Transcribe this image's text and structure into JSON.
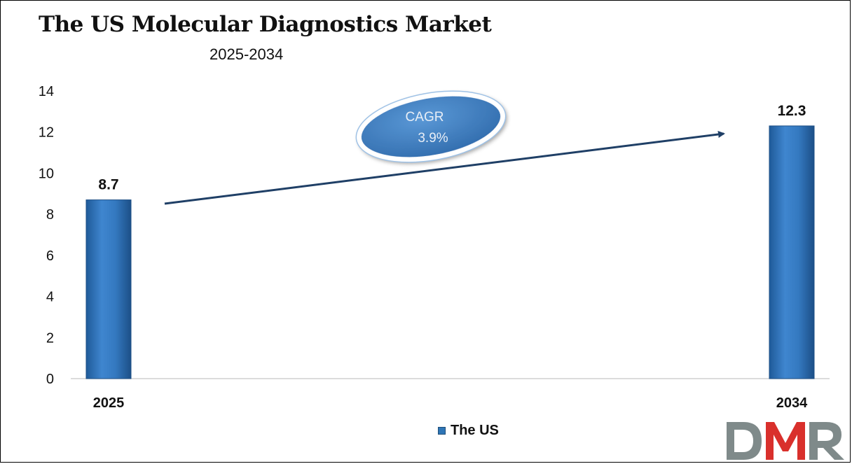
{
  "chart_data": {
    "type": "bar",
    "title": "The US Molecular Diagnostics Market",
    "subtitle": "2025-2034",
    "categories": [
      "2025",
      "2034"
    ],
    "series": [
      {
        "name": "The US",
        "values": [
          8.7,
          12.3
        ],
        "color": "#2e75b6"
      }
    ],
    "data_labels": [
      "8.7",
      "12.3"
    ],
    "y_ticks": [
      "0",
      "2",
      "4",
      "6",
      "8",
      "10",
      "12",
      "14"
    ],
    "ylim": [
      0,
      14
    ],
    "grid": false,
    "legend": {
      "position": "bottom",
      "label": "The US"
    },
    "annotation": {
      "line1": "CAGR",
      "line2": "3.9%",
      "color": "#3d7cc4",
      "arrow_color": "#1f3f66"
    }
  },
  "logo": {
    "text": "DMR",
    "colors": {
      "d": "#7f8a8a",
      "m": "#d9302c",
      "r": "#7f8a8a"
    }
  }
}
